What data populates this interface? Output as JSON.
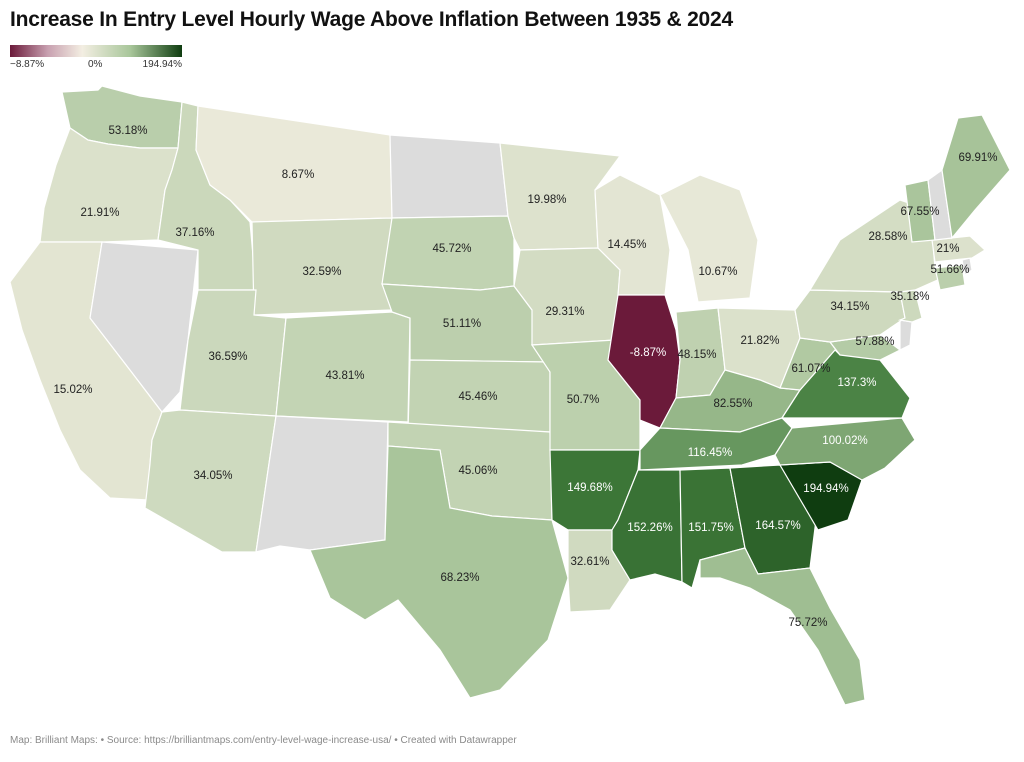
{
  "title": "Increase In Entry Level Hourly Wage Above Inflation Between 1935 & 2024",
  "legend": {
    "min": "−8.87%",
    "mid": "0%",
    "max": "194.94%"
  },
  "colors": {
    "no_data": "#dcdcdc",
    "negative": "#6b1a3a",
    "neutral": "#f3eee2",
    "max": "#0f3d10"
  },
  "states": [
    {
      "id": "WA",
      "value": 53.18,
      "label": "53.18%"
    },
    {
      "id": "OR",
      "value": 21.91,
      "label": "21.91%"
    },
    {
      "id": "CA",
      "value": 15.02,
      "label": "15.02%"
    },
    {
      "id": "NV",
      "value": null,
      "label": ""
    },
    {
      "id": "ID",
      "value": 37.16,
      "label": "37.16%"
    },
    {
      "id": "MT",
      "value": 8.67,
      "label": "8.67%"
    },
    {
      "id": "WY",
      "value": 32.59,
      "label": "32.59%"
    },
    {
      "id": "UT",
      "value": 36.59,
      "label": "36.59%"
    },
    {
      "id": "AZ",
      "value": 34.05,
      "label": "34.05%"
    },
    {
      "id": "CO",
      "value": 43.81,
      "label": "43.81%"
    },
    {
      "id": "NM",
      "value": null,
      "label": ""
    },
    {
      "id": "ND",
      "value": null,
      "label": ""
    },
    {
      "id": "SD",
      "value": 45.72,
      "label": "45.72%"
    },
    {
      "id": "NE",
      "value": 51.11,
      "label": "51.11%"
    },
    {
      "id": "KS",
      "value": 45.46,
      "label": "45.46%"
    },
    {
      "id": "OK",
      "value": 45.06,
      "label": "45.06%"
    },
    {
      "id": "TX",
      "value": 68.23,
      "label": "68.23%"
    },
    {
      "id": "MN",
      "value": 19.98,
      "label": "19.98%"
    },
    {
      "id": "IA",
      "value": 29.31,
      "label": "29.31%"
    },
    {
      "id": "MO",
      "value": 50.7,
      "label": "50.7%"
    },
    {
      "id": "AR",
      "value": 149.68,
      "label": "149.68%"
    },
    {
      "id": "LA",
      "value": 32.61,
      "label": "32.61%"
    },
    {
      "id": "WI",
      "value": 14.45,
      "label": "14.45%"
    },
    {
      "id": "IL",
      "value": -8.87,
      "label": "-8.87%"
    },
    {
      "id": "MI",
      "value": 10.67,
      "label": "10.67%"
    },
    {
      "id": "IN",
      "value": 48.15,
      "label": "48.15%"
    },
    {
      "id": "OH",
      "value": 21.82,
      "label": "21.82%"
    },
    {
      "id": "KY",
      "value": 82.55,
      "label": "82.55%"
    },
    {
      "id": "TN",
      "value": 116.45,
      "label": "116.45%"
    },
    {
      "id": "MS",
      "value": 152.26,
      "label": "152.26%"
    },
    {
      "id": "AL",
      "value": 151.75,
      "label": "151.75%"
    },
    {
      "id": "GA",
      "value": 164.57,
      "label": "164.57%"
    },
    {
      "id": "FL",
      "value": 75.72,
      "label": "75.72%"
    },
    {
      "id": "SC",
      "value": 194.94,
      "label": "194.94%"
    },
    {
      "id": "NC",
      "value": 100.02,
      "label": "100.02%"
    },
    {
      "id": "VA",
      "value": 137.3,
      "label": "137.3%"
    },
    {
      "id": "WV",
      "value": 61.07,
      "label": "61.07%"
    },
    {
      "id": "MD",
      "value": 57.88,
      "label": "57.88%"
    },
    {
      "id": "DE",
      "value": null,
      "label": ""
    },
    {
      "id": "PA",
      "value": 34.15,
      "label": "34.15%"
    },
    {
      "id": "NJ",
      "value": 35.18,
      "label": "35.18%"
    },
    {
      "id": "NY",
      "value": 28.58,
      "label": "28.58%"
    },
    {
      "id": "CT",
      "value": 51.66,
      "label": "51.66%"
    },
    {
      "id": "RI",
      "value": null,
      "label": ""
    },
    {
      "id": "MA",
      "value": 21,
      "label": "21%"
    },
    {
      "id": "VT",
      "value": 67.55,
      "label": "67.55%"
    },
    {
      "id": "NH",
      "value": null,
      "label": ""
    },
    {
      "id": "ME",
      "value": 69.91,
      "label": "69.91%"
    }
  ],
  "footer": "Map: Brilliant Maps: • Source: https://brilliantmaps.com/entry-level-wage-increase-usa/ • Created with Datawrapper"
}
